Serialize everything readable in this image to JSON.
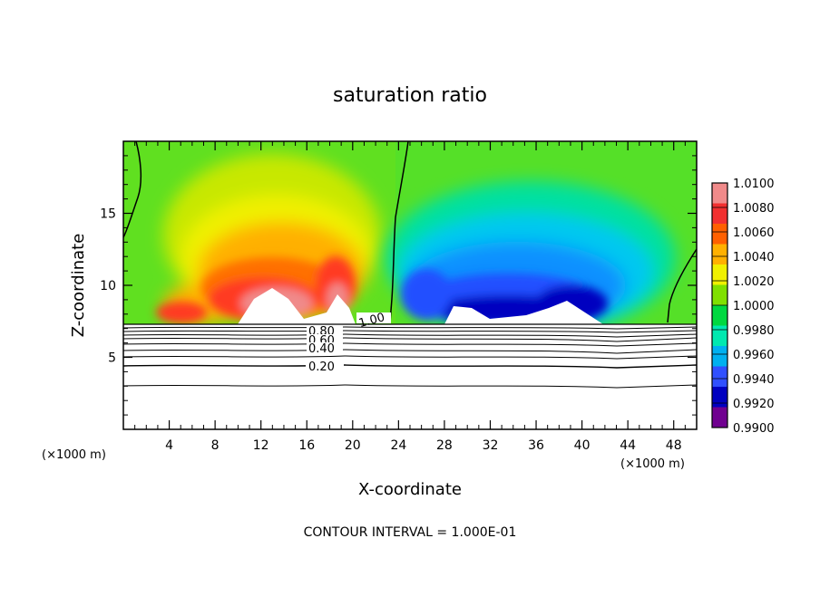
{
  "chart_data": {
    "type": "heatmap",
    "title": "saturation ratio",
    "xlabel": "X-coordinate",
    "ylabel": "Z-coordinate",
    "x_unit": "(×1000 m)",
    "z_unit": "(×1000 m)",
    "xlim": [
      0,
      50
    ],
    "ylim": [
      0,
      20
    ],
    "x_ticks": [
      "4",
      "8",
      "12",
      "16",
      "20",
      "24",
      "28",
      "32",
      "36",
      "40",
      "44",
      "48"
    ],
    "y_ticks": [
      "5",
      "10",
      "15"
    ],
    "footer": "CONTOUR INTERVAL = 1.000E-01",
    "colorbar": {
      "min": 0.99,
      "max": 1.01,
      "labels": [
        "1.0100",
        "1.0080",
        "1.0060",
        "1.0040",
        "1.0020",
        "1.0000",
        "0.9980",
        "0.9960",
        "0.9940",
        "0.9920",
        "0.9900"
      ],
      "colors": [
        "#f08a8a",
        "#f23030",
        "#ff6000",
        "#ffb000",
        "#f0f000",
        "#80e000",
        "#00d840",
        "#00e8b0",
        "#00b0f0",
        "#3050ff",
        "#0000c0",
        "#700090"
      ]
    },
    "contour_labels": [
      "1.00",
      "0.80",
      "0.60",
      "0.40",
      "0.20"
    ]
  }
}
